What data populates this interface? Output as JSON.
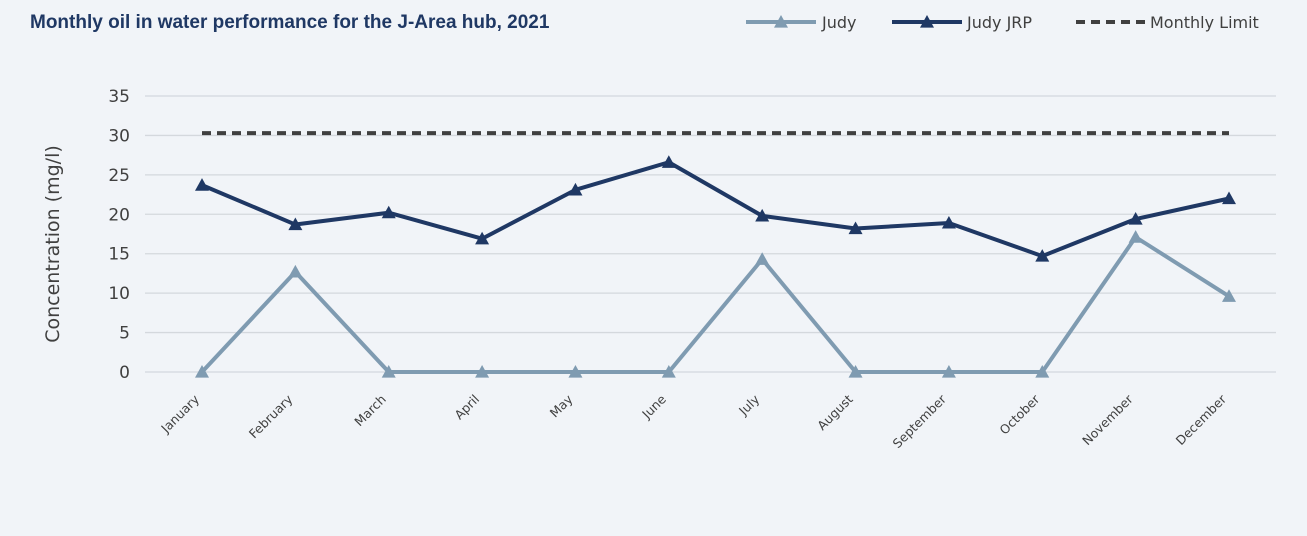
{
  "chart_data": {
    "type": "line",
    "title": "Monthly oil in water performance for the J-Area hub, 2021",
    "xlabel": "",
    "ylabel": "Concentration (mg/l)",
    "ylim": [
      0,
      35
    ],
    "yticks": [
      0,
      5,
      10,
      15,
      20,
      25,
      30,
      35
    ],
    "grid": true,
    "legend_position": "top-right",
    "categories": [
      "January",
      "February",
      "March",
      "April",
      "May",
      "June",
      "July",
      "August",
      "September",
      "October",
      "November",
      "December"
    ],
    "series": [
      {
        "name": "Judy",
        "color": "#7f9bb1",
        "marker": "triangle",
        "dash": "solid",
        "values": [
          0,
          12.7,
          0,
          0,
          0,
          0,
          14.3,
          0,
          0,
          0,
          17.1,
          9.6
        ]
      },
      {
        "name": "Judy JRP",
        "color": "#1f3864",
        "marker": "triangle",
        "dash": "solid",
        "values": [
          23.7,
          18.7,
          20.2,
          16.9,
          23.1,
          26.6,
          19.8,
          18.2,
          18.9,
          14.7,
          19.4,
          22.0
        ]
      },
      {
        "name": "Monthly Limit",
        "color": "#404040",
        "marker": "none",
        "dash": "dashed",
        "values": [
          30.3,
          30.3,
          30.3,
          30.3,
          30.3,
          30.3,
          30.3,
          30.3,
          30.3,
          30.3,
          30.3,
          30.3
        ]
      }
    ]
  }
}
